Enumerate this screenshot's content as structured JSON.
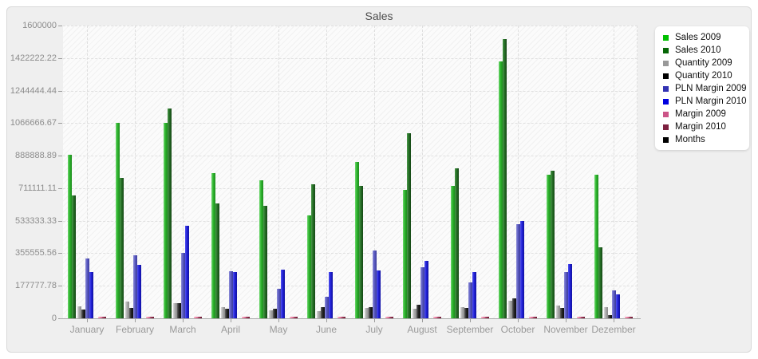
{
  "panel": {
    "title": "Sales"
  },
  "chart_data": {
    "type": "bar",
    "title": "Sales",
    "xlabel": "",
    "ylabel": "",
    "ylim": [
      0,
      1600000
    ],
    "ytick_labels": [
      "1600000",
      "1422222.22",
      "1244444.44",
      "1066666.67",
      "888888.89",
      "711111.11",
      "533333.33",
      "355555.56",
      "177777.78",
      "0"
    ],
    "grid": "dashed horizontal and vertical, hatched plot background",
    "legend_position": "right",
    "categories": [
      "January",
      "February",
      "March",
      "April",
      "May",
      "June",
      "July",
      "August",
      "September",
      "October",
      "November",
      "Dezember"
    ],
    "series": [
      {
        "name": "Sales 2009",
        "legend_color": "#00c000",
        "bar_gradient": [
          "#71d871",
          "#2db42d",
          "#1e8c1e"
        ],
        "values": [
          892000,
          1067000,
          1069000,
          794000,
          756000,
          561000,
          853000,
          700000,
          724000,
          1404000,
          785000,
          785000
        ]
      },
      {
        "name": "Sales 2010",
        "legend_color": "#056605",
        "bar_gradient": [
          "#4d9a4d",
          "#256f25",
          "#154715"
        ],
        "values": [
          673000,
          769000,
          1146000,
          628000,
          615000,
          732000,
          722000,
          1012000,
          820000,
          1524000,
          808000,
          386000
        ]
      },
      {
        "name": "Quantity 2009",
        "legend_color": "#999999",
        "bar_gradient": [
          "#d9d9d9",
          "#ababab",
          "#8a8a8a"
        ],
        "values": [
          64000,
          93000,
          84000,
          61000,
          44000,
          39000,
          58000,
          54000,
          63000,
          97000,
          69000,
          60000
        ]
      },
      {
        "name": "Quantity 2010",
        "legend_color": "#000000",
        "bar_gradient": [
          "#666666",
          "#262626",
          "#0d0d0d"
        ],
        "values": [
          48000,
          57000,
          82000,
          51000,
          51000,
          61000,
          60000,
          73000,
          56000,
          109000,
          57000,
          16000
        ]
      },
      {
        "name": "PLN Margin 2009",
        "legend_color": "#3333b3",
        "bar_gradient": [
          "#9090d8",
          "#5a5ac2",
          "#3c3c9a"
        ],
        "values": [
          325000,
          346000,
          358000,
          258000,
          160000,
          119000,
          371000,
          281000,
          198000,
          515000,
          253000,
          153000
        ]
      },
      {
        "name": "PLN Margin 2010",
        "legend_color": "#0000e0",
        "bar_gradient": [
          "#5555f0",
          "#2222d8",
          "#1010a0"
        ],
        "values": [
          255000,
          294000,
          507000,
          252000,
          265000,
          255000,
          262000,
          313000,
          255000,
          530000,
          297000,
          130000
        ]
      },
      {
        "name": "Margin 2009",
        "legend_color": "#cc5588",
        "bar_gradient": [
          "#f8b8cc",
          "#ee8cab",
          "#d06088"
        ],
        "values": [
          10000,
          10000,
          10000,
          10000,
          10000,
          10000,
          10000,
          10000,
          10000,
          10000,
          10000,
          10000
        ]
      },
      {
        "name": "Margin 2010",
        "legend_color": "#7d2040",
        "bar_gradient": [
          "#b05570",
          "#8e2f4d",
          "#6a1830"
        ],
        "values": [
          9000,
          9000,
          9000,
          9000,
          9000,
          9000,
          9000,
          9000,
          9000,
          9000,
          9000,
          9000
        ]
      },
      {
        "name": "Months",
        "legend_color": "#000000",
        "bar_gradient": [
          "#444444",
          "#111111",
          "#000000"
        ],
        "values": [
          1,
          2,
          3,
          4,
          5,
          6,
          7,
          8,
          9,
          10,
          11,
          12
        ]
      }
    ]
  }
}
